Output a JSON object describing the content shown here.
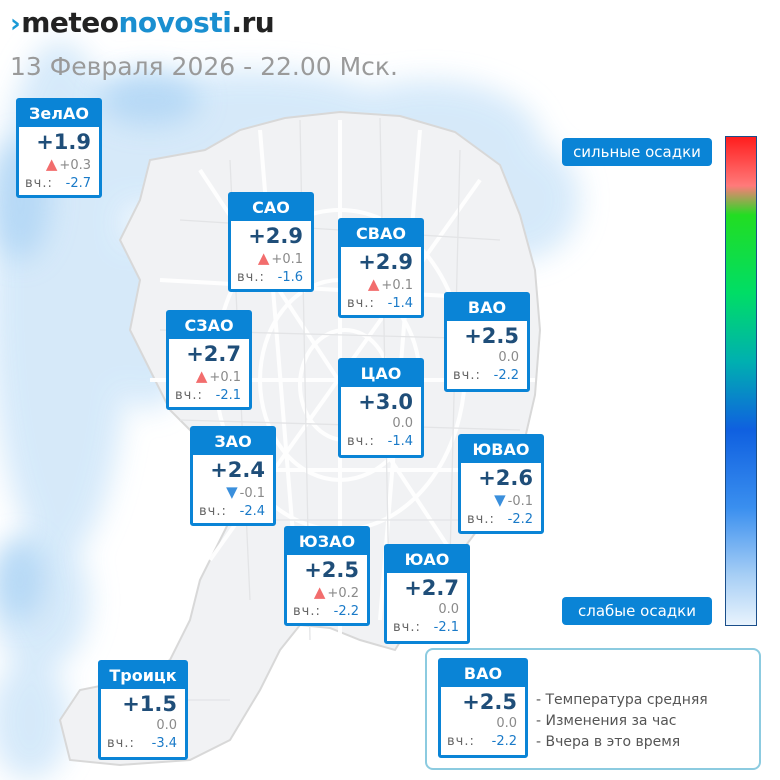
{
  "header": {
    "logo_part1": "meteo",
    "logo_part2": "novosti",
    "logo_part3": ".ru",
    "subtitle": "13 Февраля 2026 - 22.00 Мск."
  },
  "districts": [
    {
      "name": "ЗелАО",
      "temp": "+1.9",
      "change": "+0.3",
      "trend": "up",
      "yesterday_label": "вч.:",
      "yesterday": "-2.7"
    },
    {
      "name": "САО",
      "temp": "+2.9",
      "change": "+0.1",
      "trend": "up",
      "yesterday_label": "вч.:",
      "yesterday": "-1.6"
    },
    {
      "name": "СВАО",
      "temp": "+2.9",
      "change": "+0.1",
      "trend": "up",
      "yesterday_label": "вч.:",
      "yesterday": "-1.4"
    },
    {
      "name": "ВАО",
      "temp": "+2.5",
      "change": "0.0",
      "trend": "none",
      "yesterday_label": "вч.:",
      "yesterday": "-2.2"
    },
    {
      "name": "СЗАО",
      "temp": "+2.7",
      "change": "+0.1",
      "trend": "up",
      "yesterday_label": "вч.:",
      "yesterday": "-2.1"
    },
    {
      "name": "ЦАО",
      "temp": "+3.0",
      "change": "0.0",
      "trend": "none",
      "yesterday_label": "вч.:",
      "yesterday": "-1.4"
    },
    {
      "name": "ЗАО",
      "temp": "+2.4",
      "change": "-0.1",
      "trend": "down",
      "yesterday_label": "вч.:",
      "yesterday": "-2.4"
    },
    {
      "name": "ЮВАО",
      "temp": "+2.6",
      "change": "-0.1",
      "trend": "down",
      "yesterday_label": "вч.:",
      "yesterday": "-2.2"
    },
    {
      "name": "ЮЗАО",
      "temp": "+2.5",
      "change": "+0.2",
      "trend": "up",
      "yesterday_label": "вч.:",
      "yesterday": "-2.2"
    },
    {
      "name": "ЮАО",
      "temp": "+2.7",
      "change": "0.0",
      "trend": "none",
      "yesterday_label": "вч.:",
      "yesterday": "-2.1"
    },
    {
      "name": "Троицк",
      "temp": "+1.5",
      "change": "0.0",
      "trend": "none",
      "yesterday_label": "вч.:",
      "yesterday": "-3.4"
    }
  ],
  "precip_scale": {
    "high_label": "сильные осадки",
    "low_label": "слабые осадки",
    "colors": [
      "#ff1e1e",
      "#22dd22",
      "#0f60e0",
      "#e8f3fd"
    ]
  },
  "legend": {
    "sample": {
      "name": "ВАО",
      "temp": "+2.5",
      "change": "0.0",
      "yesterday_label": "вч.:",
      "yesterday": "-2.2"
    },
    "lines": [
      "- Температура средняя",
      "- Изменения за час",
      "- Вчера в это время"
    ]
  },
  "colors": {
    "accent": "#0a84d6",
    "temp_text": "#1f4e79",
    "trend_up": "#f26d6d",
    "trend_down": "#3a8fdc",
    "precip_light": "#cfe6f9"
  }
}
